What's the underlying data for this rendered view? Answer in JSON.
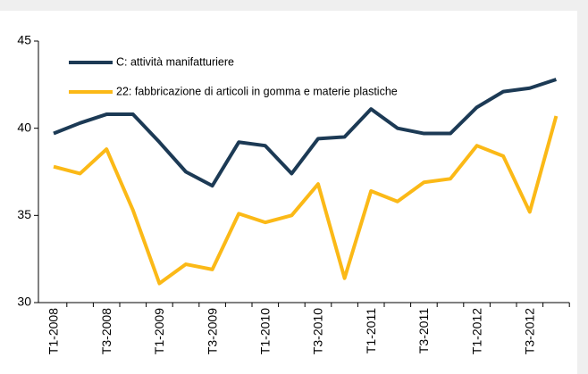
{
  "chart_data": {
    "type": "line",
    "categories": [
      "T1-2008",
      null,
      "T3-2008",
      null,
      "T1-2009",
      null,
      "T3-2009",
      null,
      "T1-2010",
      null,
      "T3-2010",
      null,
      "T1-2011",
      null,
      "T3-2011",
      null,
      "T1-2012",
      null,
      "T3-2012",
      null
    ],
    "series": [
      {
        "name": "C: attività manifatturiere",
        "color": "#1c3a55",
        "values": [
          39.7,
          40.3,
          40.8,
          40.8,
          39.2,
          37.5,
          36.7,
          39.2,
          39.0,
          37.4,
          39.4,
          39.5,
          41.1,
          40.0,
          39.7,
          39.7,
          41.2,
          42.1,
          42.3,
          42.8
        ]
      },
      {
        "name": "22: fabbricazione di articoli in gomma e materie plastiche",
        "color": "#fbb917",
        "values": [
          37.8,
          37.4,
          38.8,
          35.3,
          31.1,
          32.2,
          31.9,
          35.1,
          34.6,
          35.0,
          36.8,
          31.4,
          36.4,
          35.8,
          36.9,
          37.1,
          39.0,
          38.4,
          35.2,
          40.7
        ]
      }
    ],
    "ylim": [
      30,
      45
    ],
    "yticks": [
      30,
      35,
      40,
      45
    ],
    "legend": "upper left"
  }
}
